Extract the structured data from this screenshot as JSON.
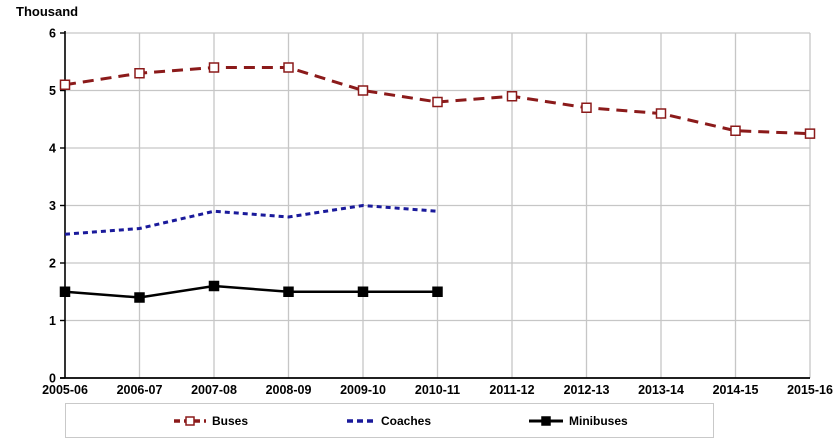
{
  "chart_data": {
    "type": "line",
    "title": "Thousand",
    "xlabel": "",
    "ylabel": "Thousand",
    "categories": [
      "2005-06",
      "2006-07",
      "2007-08",
      "2008-09",
      "2009-10",
      "2010-11",
      "2011-12",
      "2012-13",
      "2013-14",
      "2014-15",
      "2015-16"
    ],
    "ylim": [
      0,
      6
    ],
    "ytick_step": 1,
    "grid": true,
    "legend_position": "bottom",
    "grid_color": "#c6c6c6",
    "axis_color": "#000000",
    "series": [
      {
        "name": "Buses",
        "color": "#8b1a1a",
        "dash": "11,7",
        "line_width": 3,
        "marker": "open-square",
        "marker_size": 9,
        "values": [
          5.1,
          5.3,
          5.4,
          5.4,
          5.0,
          4.8,
          4.9,
          4.7,
          4.6,
          4.3,
          4.25
        ]
      },
      {
        "name": "Coaches",
        "color": "#1a1a9b",
        "dash": "5,4",
        "line_width": 3,
        "marker": "none",
        "marker_size": 0,
        "values": [
          2.5,
          2.6,
          2.9,
          2.8,
          3.0,
          2.9
        ]
      },
      {
        "name": "Minibuses",
        "color": "#000000",
        "dash": "none",
        "line_width": 2.5,
        "marker": "filled-square",
        "marker_size": 9,
        "values": [
          1.5,
          1.4,
          1.6,
          1.5,
          1.5,
          1.5
        ]
      }
    ]
  }
}
